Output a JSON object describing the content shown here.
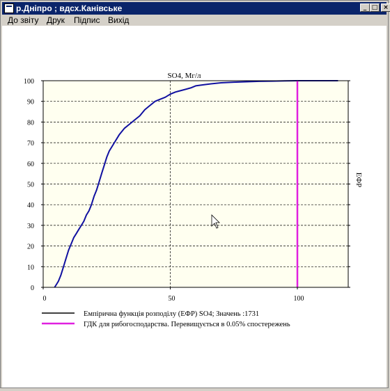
{
  "window": {
    "title": "р.Дніпро ; вдсх.Канівське",
    "controls": {
      "minimize": "_",
      "maximize": "□",
      "close": "×"
    }
  },
  "menu": {
    "items": [
      "До звіту",
      "Друк",
      "Підпис",
      "Вихід"
    ]
  },
  "chart_data": {
    "type": "line",
    "title": "SO4, Мг/л",
    "ylabel": "ЕФР",
    "xlabel": "",
    "xlim": [
      0,
      120
    ],
    "ylim": [
      0,
      100
    ],
    "x_ticks": [
      "0",
      "50",
      "100"
    ],
    "y_ticks": [
      "0",
      "10",
      "20",
      "30",
      "40",
      "50",
      "60",
      "70",
      "80",
      "90",
      "100"
    ],
    "grid": true,
    "background": "#fffff0",
    "series": [
      {
        "name": "Емпірична функція розподілу (ЕФР) SO4;  Значень :1731",
        "color": "#1010a0",
        "x": [
          4.5,
          5,
          5.5,
          6,
          7,
          8,
          9,
          10,
          11,
          12,
          13,
          14,
          15,
          16,
          17,
          18,
          19,
          20,
          21,
          22,
          23,
          24,
          25,
          26,
          27,
          28,
          30,
          32,
          34,
          36,
          38,
          40,
          42,
          44,
          46,
          48,
          50,
          52,
          55,
          58,
          60,
          63,
          66,
          70,
          75,
          80,
          85,
          90,
          95,
          100,
          110,
          116
        ],
        "y": [
          0,
          1,
          2,
          3,
          6,
          10,
          14,
          18,
          21,
          24,
          26,
          28,
          30,
          32,
          35,
          37,
          40,
          44,
          47,
          51,
          55,
          59,
          63,
          66,
          68,
          70,
          74,
          77,
          79,
          81,
          83,
          86,
          88,
          90,
          91,
          92,
          93.5,
          94.5,
          95.5,
          96.5,
          97.5,
          98,
          98.5,
          99,
          99.3,
          99.5,
          99.7,
          99.8,
          99.9,
          100,
          100,
          100
        ]
      },
      {
        "name": "ГДК для рибогосподарства. Перевищується в 0.05% спостережень",
        "color": "#e020e0",
        "x": [
          100,
          100
        ],
        "y": [
          0,
          100
        ]
      }
    ],
    "legend_placement": "bottom-left"
  }
}
